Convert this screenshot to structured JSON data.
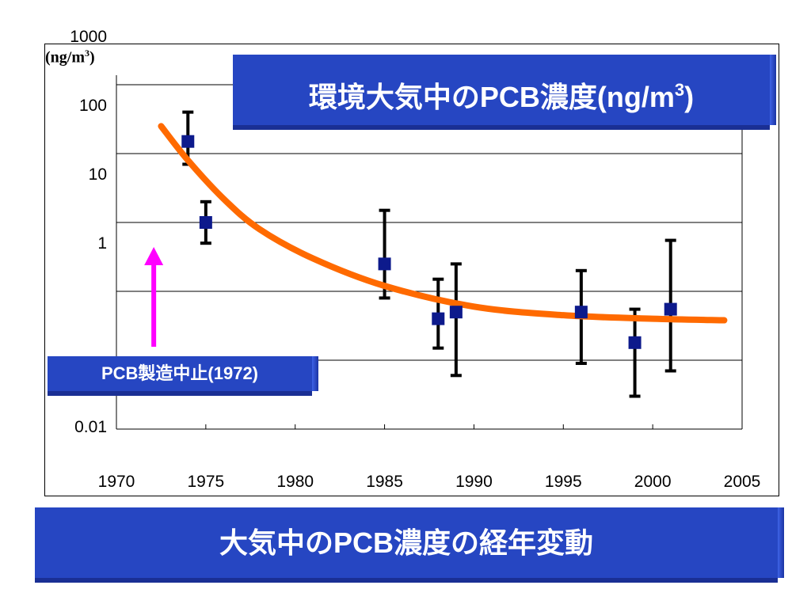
{
  "slide": {
    "chart_title": {
      "text": "環境大気中のPCB濃度(ng/m",
      "superscript": "3",
      "suffix": ")"
    },
    "stop_label": "PCB製造中止(1972)",
    "caption": "大気中のPCB濃度の経年変動"
  },
  "colors": {
    "banner": "#2646c2",
    "trend": "#ff6a00",
    "marker": "#0d1a8c",
    "arrow": "#ff00ff",
    "gridline": "#000000"
  },
  "chart_data": {
    "type": "scatter",
    "title": "環境大気中のPCB濃度(ng/m3)",
    "ylabel": "(ng/m3)",
    "xlabel": "",
    "y_scale": "log",
    "xlim": [
      1970,
      2005
    ],
    "ylim": [
      0.01,
      1000
    ],
    "x_ticks": [
      1970,
      1975,
      1980,
      1985,
      1990,
      1995,
      2000,
      2005
    ],
    "y_ticks": [
      {
        "value": 1000,
        "label": "1000"
      },
      {
        "value": 100,
        "label": "100"
      },
      {
        "value": 10,
        "label": "10"
      },
      {
        "value": 1,
        "label": "1"
      },
      {
        "value": 0.1,
        "label": ""
      },
      {
        "value": 0.01,
        "label": "0.01"
      }
    ],
    "grid": "horizontal",
    "points": [
      {
        "x": 1974,
        "y": 150,
        "y_low": 70,
        "y_high": 400
      },
      {
        "x": 1975,
        "y": 10,
        "y_low": 5,
        "y_high": 20
      },
      {
        "x": 1985,
        "y": 2.5,
        "y_low": 0.8,
        "y_high": 15
      },
      {
        "x": 1988,
        "y": 0.4,
        "y_low": 0.15,
        "y_high": 1.5
      },
      {
        "x": 1989,
        "y": 0.5,
        "y_low": 0.06,
        "y_high": 2.5
      },
      {
        "x": 1996,
        "y": 0.5,
        "y_low": 0.09,
        "y_high": 2
      },
      {
        "x": 1999,
        "y": 0.18,
        "y_low": 0.03,
        "y_high": 0.55
      },
      {
        "x": 2001,
        "y": 0.55,
        "y_low": 0.07,
        "y_high": 5.5
      }
    ],
    "trend": {
      "x": [
        1972.5,
        1974,
        1976,
        1978,
        1981,
        1985,
        1990,
        1995,
        2000,
        2004
      ],
      "y": [
        250,
        80,
        22,
        8,
        3,
        1.2,
        0.6,
        0.45,
        0.4,
        0.38
      ]
    },
    "annotations": [
      {
        "label": "PCB製造中止(1972)",
        "x": 1972
      }
    ]
  }
}
